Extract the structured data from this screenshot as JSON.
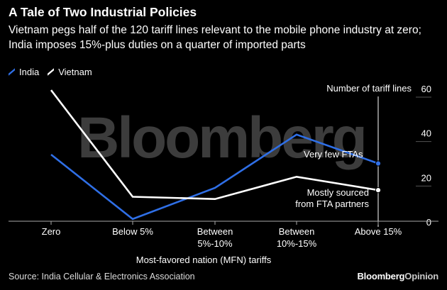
{
  "header": {
    "title": "A Tale of Two Industrial Policies",
    "subtitle": "Vietnam pegs half of the 120 tariff lines relevant to the mobile phone industry at zero; India imposes 15%-plus duties on a quarter of imported parts"
  },
  "legend": [
    {
      "name": "India",
      "color": "#2f6fe6"
    },
    {
      "name": "Vietnam",
      "color": "#ffffff"
    }
  ],
  "watermark": "Bloomberg",
  "footer": {
    "source": "Source: India Cellular & Electronics Association",
    "brand_bold": "Bloomberg",
    "brand_light": "Opinion"
  },
  "chart_data": {
    "type": "line",
    "categories": [
      [
        "Zero"
      ],
      [
        "Below 5%"
      ],
      [
        "Between",
        "5%-10%"
      ],
      [
        "Between",
        "10%-15%"
      ],
      [
        "Above 15%"
      ]
    ],
    "series": [
      {
        "name": "India",
        "color": "#2f6fe6",
        "values": [
          30,
          1,
          15,
          39,
          26
        ]
      },
      {
        "name": "Vietnam",
        "color": "#ffffff",
        "values": [
          59,
          11,
          10,
          20,
          14
        ]
      }
    ],
    "xlabel": "Most-favored nation (MFN) tariffs",
    "ylabel": "Number of tariff lines",
    "ylim": [
      0,
      60
    ],
    "yticks": [
      0,
      20,
      40,
      60
    ],
    "y_axis_side": "right",
    "annotations": [
      {
        "text": "Very few FTAs",
        "series": "India",
        "index": 4
      },
      {
        "text": [
          "Mostly sourced",
          "from FTA partners"
        ],
        "series": "Vietnam",
        "index": 4
      }
    ]
  }
}
